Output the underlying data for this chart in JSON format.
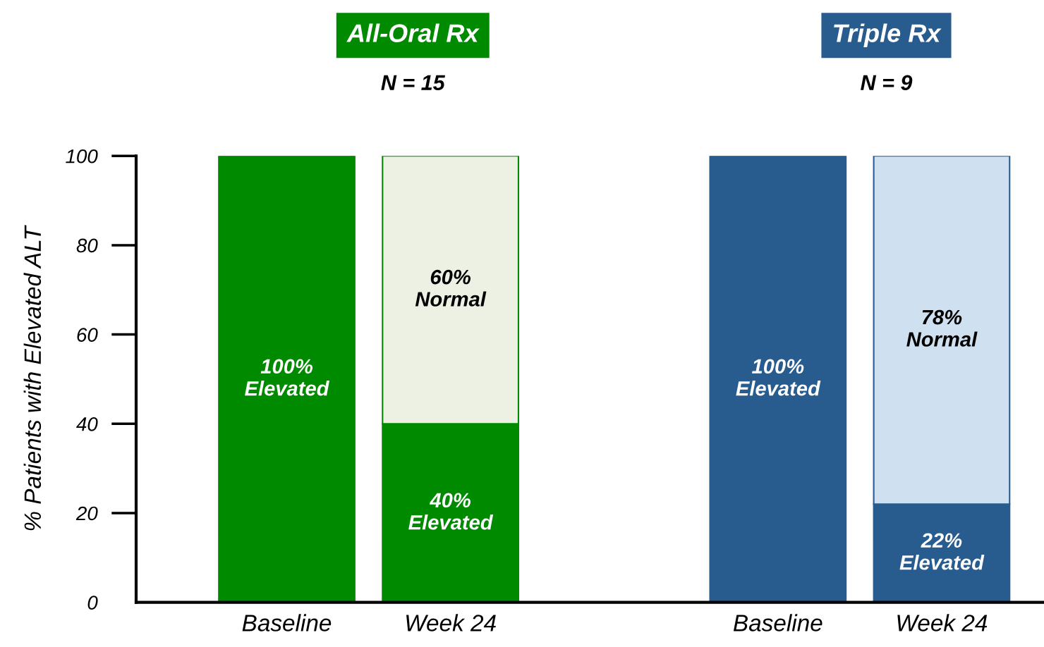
{
  "chart_data": {
    "type": "bar",
    "stacked": true,
    "ylabel": "% Patients with Elevated ALT",
    "categories": [
      "Baseline",
      "Week 24",
      null,
      "Baseline",
      "Week 24"
    ],
    "series": [
      {
        "colors": [
          "#008a00",
          "#008a00",
          null,
          "#285c8f",
          "#285c8f"
        ],
        "values": [
          100,
          40,
          null,
          100,
          22
        ],
        "value_labels": [
          "100%\nElevated",
          "40%\nElevated",
          null,
          "100%\nElevated",
          "22%\nElevated"
        ]
      },
      {
        "colors": [
          null,
          "#edf1e4",
          null,
          null,
          "#cfe0f1"
        ],
        "values": [
          null,
          60,
          null,
          null,
          78
        ],
        "value_labels": [
          null,
          "60%\nNormal",
          null,
          null,
          "78%\nNormal"
        ]
      }
    ],
    "annotations": [
      "All-Oral Rx",
      "N = 15",
      "Triple Rx",
      "N = 9"
    ],
    "ylim": [
      0,
      100
    ],
    "yticks": [
      0,
      20,
      40,
      60,
      80,
      100
    ],
    "grid": false,
    "legend": false
  }
}
